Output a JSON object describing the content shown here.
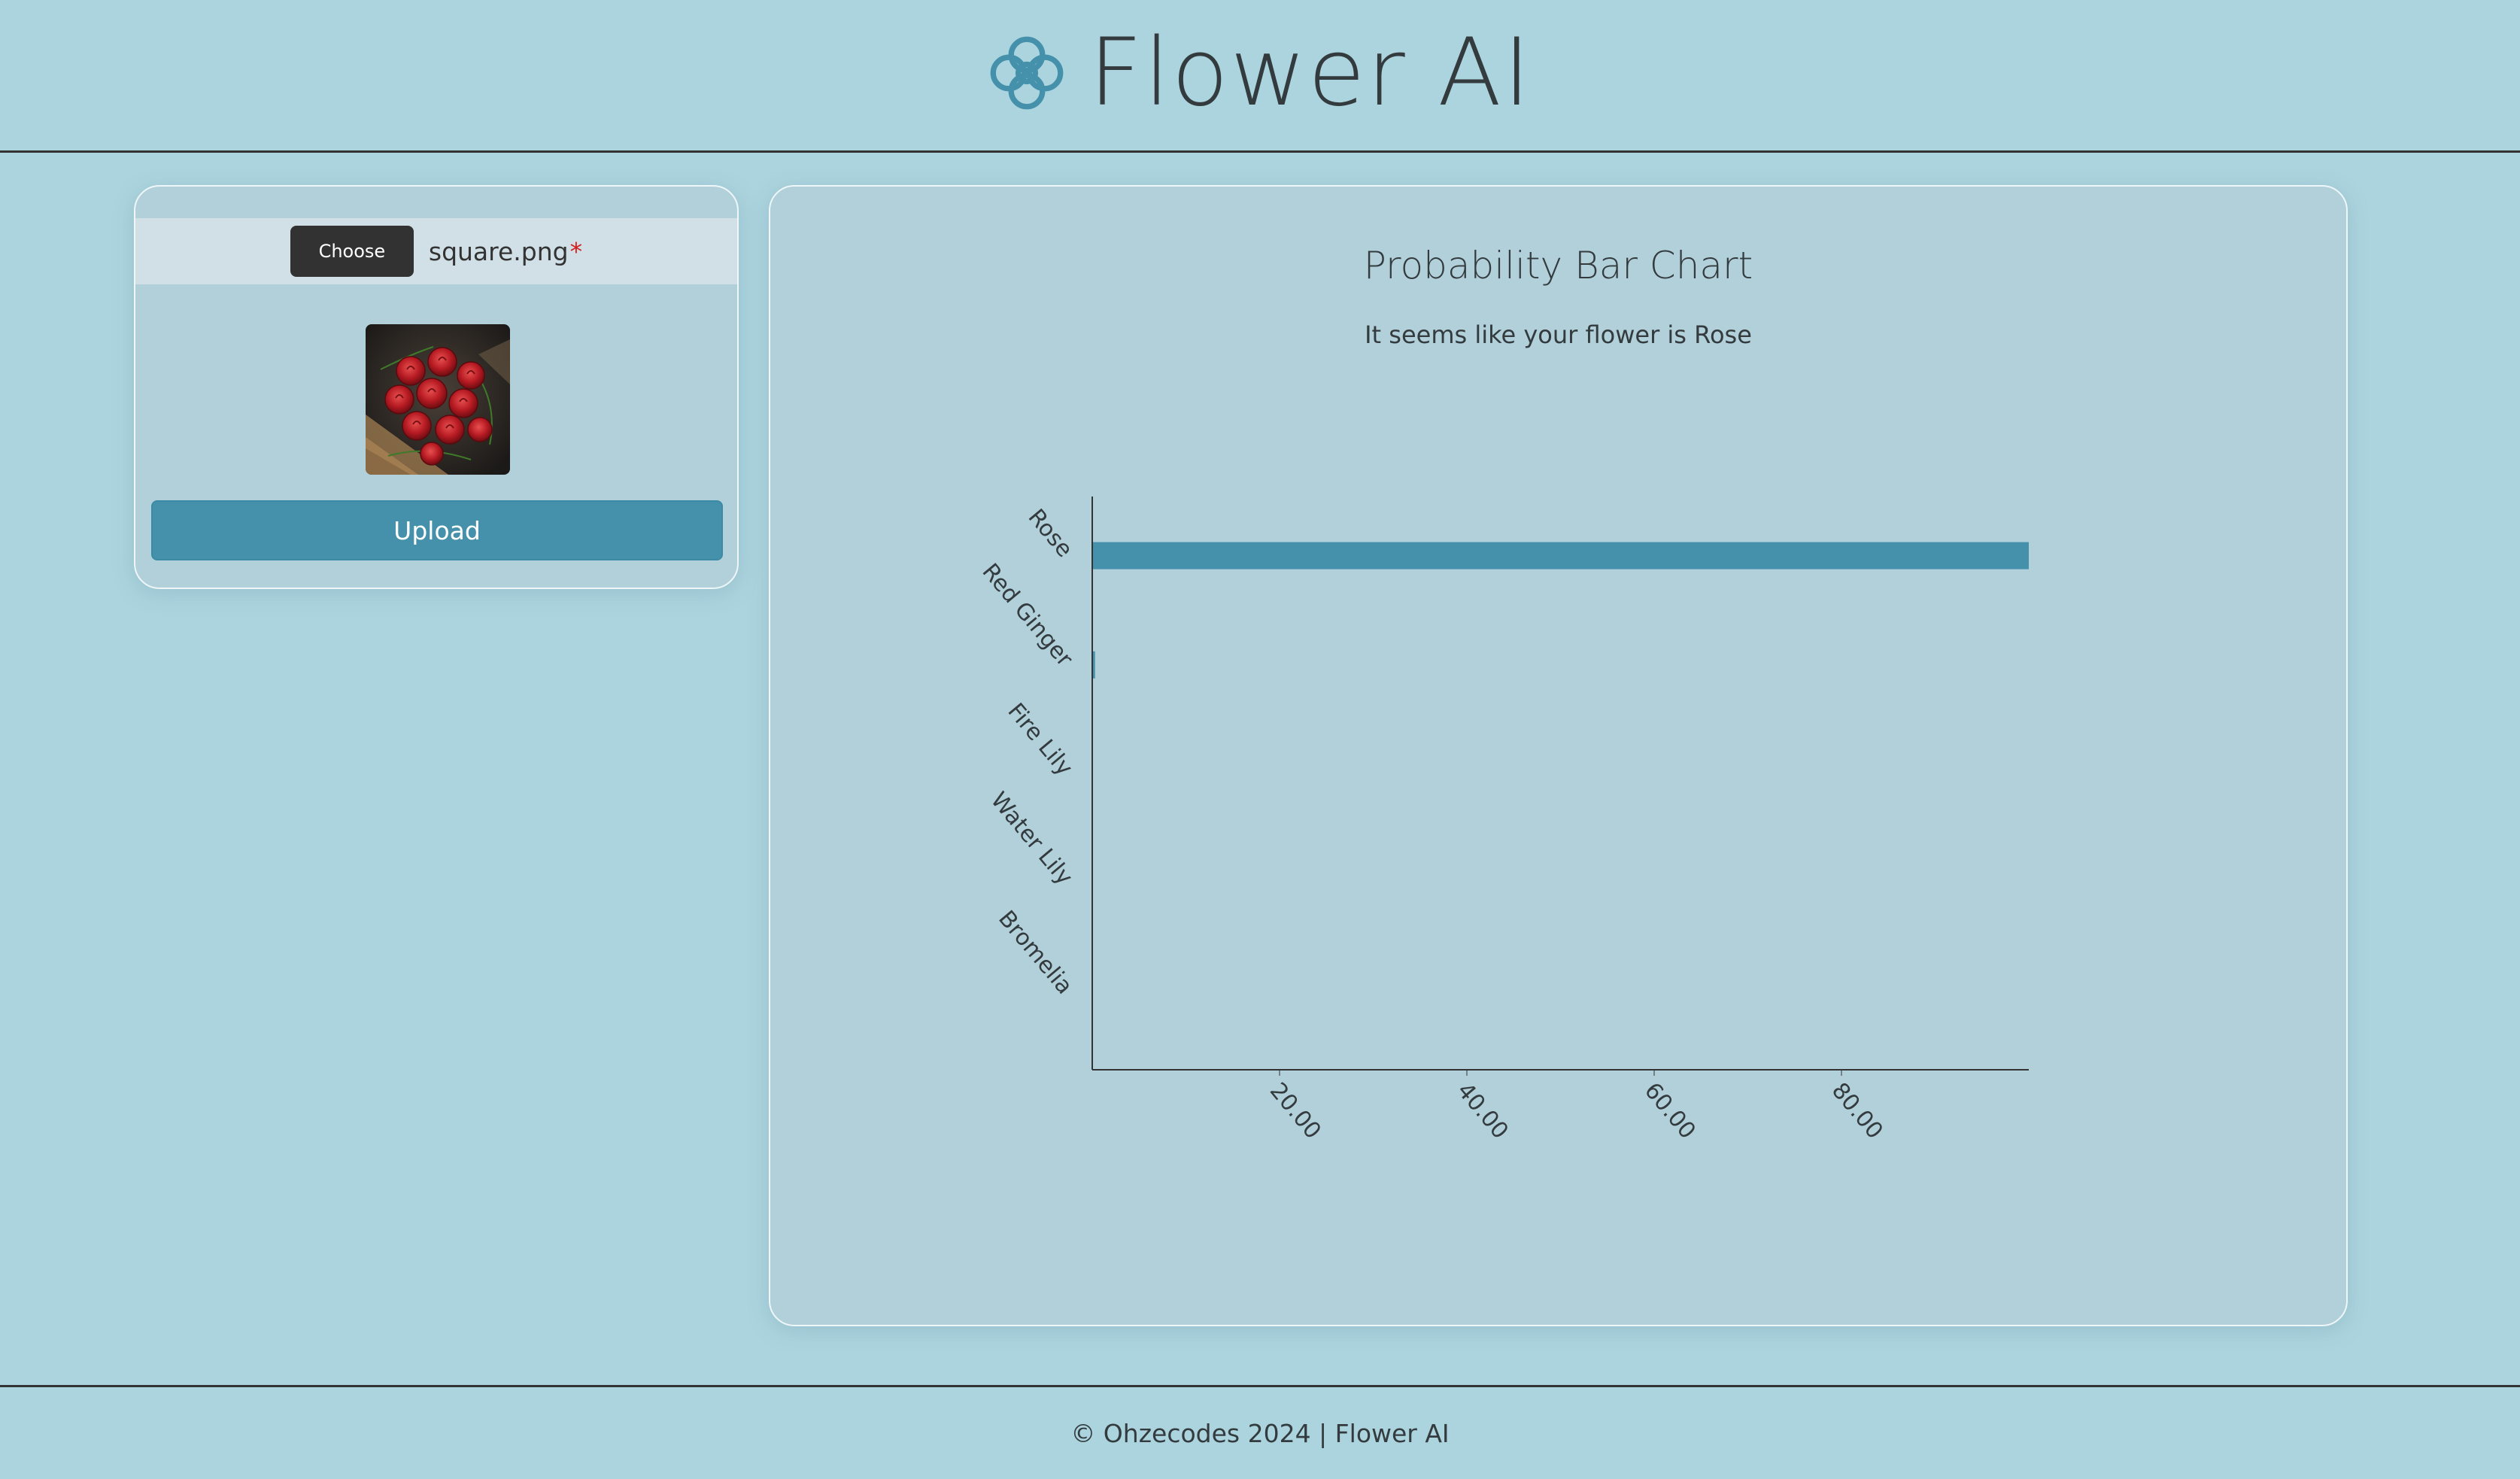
{
  "header": {
    "title": "Flower AI",
    "logo_icon": "flower-icon"
  },
  "upload": {
    "choose_label": "Choose",
    "file_name": "square.png",
    "required_mark": "*",
    "preview_icon": "rose-bouquet-image",
    "upload_label": "Upload"
  },
  "chart": {
    "title": "Probability Bar Chart",
    "subtitle": "It seems like your flower is Rose"
  },
  "chart_data": {
    "type": "bar",
    "orientation": "horizontal",
    "categories": [
      "Rose",
      "Red Ginger",
      "Fire Lily",
      "Water Lily",
      "Bromelia"
    ],
    "values": [
      100,
      0.3,
      0,
      0,
      0
    ],
    "xlim": [
      0,
      100
    ],
    "xticks": [
      "20.00",
      "40.00",
      "60.00",
      "80.00"
    ],
    "xtick_values": [
      20,
      40,
      60,
      80
    ],
    "title": "Probability Bar Chart",
    "xlabel": "",
    "ylabel": "",
    "bar_color": "#4591ab"
  },
  "footer": {
    "text": "© Ohzecodes 2024 | Flower AI"
  },
  "colors": {
    "background": "#acd4de",
    "accent": "#4591ab",
    "card": "#b2d0da"
  }
}
